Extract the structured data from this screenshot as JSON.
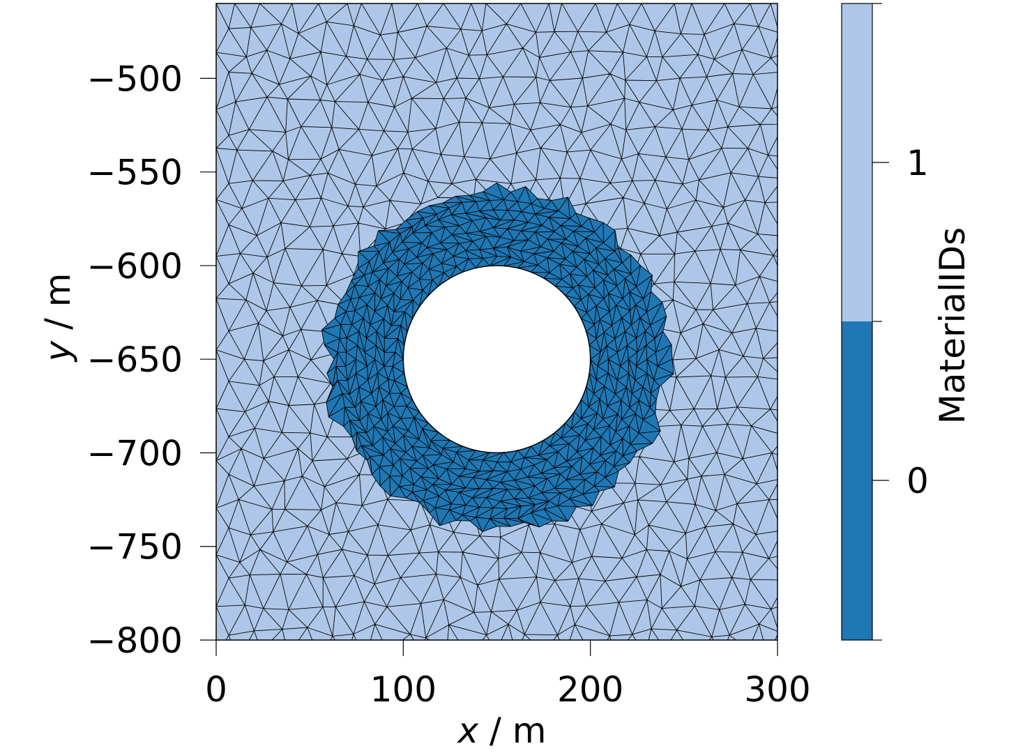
{
  "chart_data": {
    "type": "heatmap",
    "subtype": "triangular-mesh-material-map",
    "title": "",
    "xlabel": "x / m",
    "ylabel": "y / m",
    "xlim": [
      0,
      300
    ],
    "ylim": [
      -800,
      -460
    ],
    "x_ticks": [
      0,
      100,
      200,
      300
    ],
    "x_tick_labels": [
      "0",
      "100",
      "200",
      "300"
    ],
    "y_ticks": [
      -500,
      -550,
      -600,
      -650,
      -700,
      -750,
      -800
    ],
    "y_tick_labels": [
      "−500",
      "−550",
      "−600",
      "−650",
      "−700",
      "−750",
      "−800"
    ],
    "grid": false,
    "regions": [
      {
        "material_id": 1,
        "description": "outer host domain",
        "color": "#aec7e8"
      },
      {
        "material_id": 0,
        "description": "annular zone around cavity",
        "center": [
          150,
          -650
        ],
        "inner_radius": 50,
        "outer_radius_approx": 90,
        "color": "#1f77b4"
      },
      {
        "material_id": null,
        "description": "circular cavity (no mesh)",
        "center": [
          150,
          -650
        ],
        "radius": 50,
        "color": "#ffffff"
      }
    ],
    "colorbar": {
      "label": "MaterialIDs",
      "ticks": [
        0,
        1
      ],
      "tick_labels": [
        "0",
        "1"
      ],
      "colors": [
        "#1f77b4",
        "#aec7e8"
      ],
      "position": "right"
    }
  },
  "axes": {
    "x_label_var": "x",
    "x_label_unit": " / m",
    "y_label_var": "y",
    "y_label_unit": " / m"
  },
  "colors": {
    "material_0": "#1f77b4",
    "material_1": "#aec7e8",
    "mesh_edge": "#000000",
    "hole": "#ffffff"
  }
}
